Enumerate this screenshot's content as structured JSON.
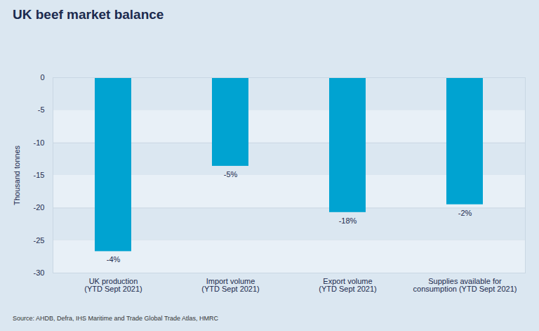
{
  "chart_data": {
    "type": "bar",
    "title": "UK beef market balance",
    "y_label": "Thousand tonnes",
    "categories": [
      "UK production\n(YTD Sept 2021)",
      "Import volume\n(YTD Sept 2021)",
      "Export volume\n(YTD Sept 2021)",
      "Supplies available for\nconsumption (YTD Sept 2021)"
    ],
    "values": [
      -26.7,
      -13.6,
      -20.7,
      -19.5
    ],
    "annotations": [
      "-4%",
      "-5%",
      "-18%",
      "-2%"
    ],
    "color": "#00a3d1",
    "ylim": [
      -30,
      0
    ],
    "yticks": [
      0,
      -5,
      -10,
      -15,
      -20,
      -25,
      -30
    ],
    "grid": true,
    "caption": "Source: AHDB, Defra, IHS Maritime and Trade Global Trade Atlas, HMRC"
  }
}
